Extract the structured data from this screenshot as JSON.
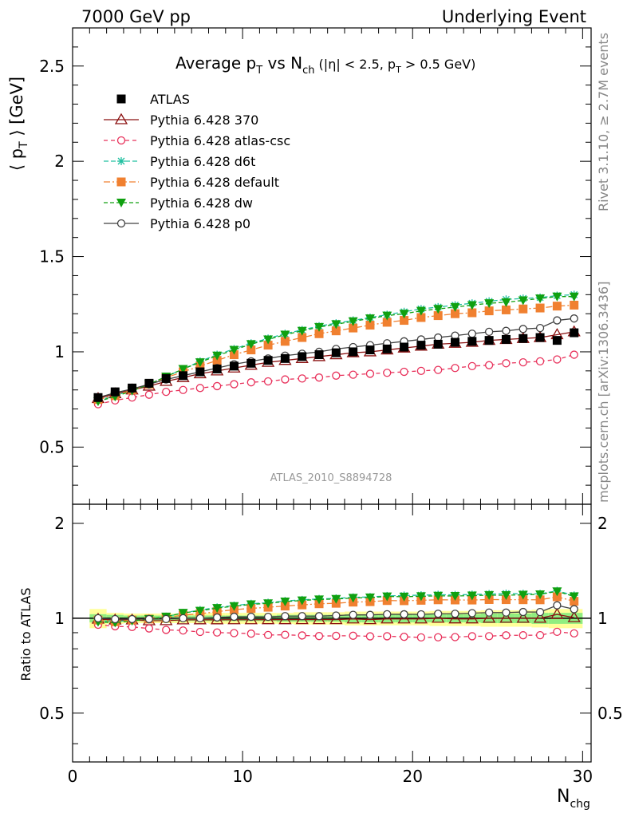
{
  "header": {
    "left": "7000 GeV pp",
    "right": "Underlying Event"
  },
  "side_text": {
    "rivet": "Rivet 3.1.10, ≥ 2.7M events",
    "mcplots": "mcplots.cern.ch [arXiv:1306.3436]"
  },
  "watermark": "ATLAS_2010_S8894728",
  "title": {
    "main": "Average p",
    "main_sub": "T",
    "vs": " vs N",
    "vs_sub": "ch",
    "cut1": " (|η| < 2.5, p",
    "cut_sub": "T",
    "cut2": " > 0.5 GeV)"
  },
  "ylabel_main": "⟨ p",
  "ylabel_main_sub": "T",
  "ylabel_main_end": " ⟩ [GeV]",
  "ylabel_ratio": "Ratio to ATLAS",
  "xlabel": "N",
  "xlabel_sub": "chg",
  "colors": {
    "ATLAS": "#000000",
    "p370": "#8b1010",
    "atlascsc": "#e8305a",
    "d6t": "#20c0a0",
    "default": "#f08030",
    "dw": "#10a010",
    "p0": "#404040",
    "band_inner": "#90ee80",
    "band_outer": "#ffff99"
  },
  "legend": [
    {
      "name": "ATLAS",
      "key": "ATLAS"
    },
    {
      "name": "Pythia 6.428 370",
      "key": "p370"
    },
    {
      "name": "Pythia 6.428 atlas-csc",
      "key": "atlascsc"
    },
    {
      "name": "Pythia 6.428 d6t",
      "key": "d6t"
    },
    {
      "name": "Pythia 6.428 default",
      "key": "default"
    },
    {
      "name": "Pythia 6.428 dw",
      "key": "dw"
    },
    {
      "name": "Pythia 6.428 p0",
      "key": "p0"
    }
  ],
  "chart_data": {
    "type": "scatter",
    "title": "Average pT vs Nch (|η| < 2.5, pT > 0.5 GeV)",
    "xlabel": "Nchg",
    "ylabel": "⟨ pT ⟩ [GeV]",
    "xlim": [
      0,
      30.5
    ],
    "ylim_main": [
      0.2,
      2.7
    ],
    "ylim_ratio": [
      0.35,
      2.3
    ],
    "x_ticks": [
      0,
      10,
      20,
      30
    ],
    "y_ticks_main": [
      0.5,
      1,
      1.5,
      2,
      2.5
    ],
    "y_ticks_ratio": [
      0.5,
      1,
      2
    ],
    "x": [
      1.5,
      2.5,
      3.5,
      4.5,
      5.5,
      6.5,
      7.5,
      8.5,
      9.5,
      10.5,
      11.5,
      12.5,
      13.5,
      14.5,
      15.5,
      16.5,
      17.5,
      18.5,
      19.5,
      20.5,
      21.5,
      22.5,
      23.5,
      24.5,
      25.5,
      26.5,
      27.5,
      28.5,
      29.5
    ],
    "series": [
      {
        "name": "ATLAS",
        "key": "ATLAS",
        "marker": "square",
        "values": [
          0.76,
          0.79,
          0.81,
          0.835,
          0.86,
          0.875,
          0.895,
          0.91,
          0.925,
          0.94,
          0.955,
          0.965,
          0.975,
          0.985,
          0.995,
          1.0,
          1.01,
          1.015,
          1.025,
          1.035,
          1.04,
          1.05,
          1.055,
          1.06,
          1.065,
          1.07,
          1.075,
          1.06,
          1.1
        ]
      },
      {
        "name": "Pythia 6.428 370",
        "key": "p370",
        "marker": "triangle-open",
        "dash": "",
        "values": [
          0.755,
          0.78,
          0.8,
          0.82,
          0.845,
          0.865,
          0.885,
          0.9,
          0.915,
          0.93,
          0.945,
          0.955,
          0.965,
          0.975,
          0.985,
          0.995,
          1.0,
          1.01,
          1.02,
          1.03,
          1.04,
          1.045,
          1.05,
          1.06,
          1.065,
          1.07,
          1.075,
          1.09,
          1.105
        ]
      },
      {
        "name": "Pythia 6.428 atlas-csc",
        "key": "atlascsc",
        "marker": "circle-open",
        "dash": "5,4",
        "values": [
          0.725,
          0.745,
          0.76,
          0.775,
          0.79,
          0.8,
          0.81,
          0.82,
          0.83,
          0.84,
          0.845,
          0.855,
          0.86,
          0.865,
          0.875,
          0.88,
          0.885,
          0.89,
          0.895,
          0.9,
          0.905,
          0.915,
          0.925,
          0.93,
          0.94,
          0.945,
          0.95,
          0.96,
          0.985
        ]
      },
      {
        "name": "Pythia 6.428 d6t",
        "key": "d6t",
        "marker": "star",
        "dash": "6,3",
        "values": [
          0.745,
          0.77,
          0.8,
          0.83,
          0.87,
          0.91,
          0.95,
          0.985,
          1.015,
          1.045,
          1.07,
          1.095,
          1.115,
          1.135,
          1.15,
          1.165,
          1.18,
          1.195,
          1.21,
          1.225,
          1.235,
          1.245,
          1.255,
          1.265,
          1.275,
          1.28,
          1.285,
          1.295,
          1.3
        ]
      },
      {
        "name": "Pythia 6.428 default",
        "key": "default",
        "marker": "square",
        "dash": "8,3,2,3",
        "values": [
          0.75,
          0.77,
          0.8,
          0.83,
          0.865,
          0.895,
          0.925,
          0.955,
          0.985,
          1.01,
          1.035,
          1.055,
          1.075,
          1.095,
          1.11,
          1.125,
          1.14,
          1.155,
          1.165,
          1.18,
          1.19,
          1.2,
          1.205,
          1.215,
          1.22,
          1.225,
          1.23,
          1.24,
          1.245
        ]
      },
      {
        "name": "Pythia 6.428 dw",
        "key": "dw",
        "marker": "triangle-down",
        "dash": "5,3",
        "values": [
          0.74,
          0.765,
          0.795,
          0.83,
          0.87,
          0.91,
          0.945,
          0.98,
          1.01,
          1.04,
          1.065,
          1.09,
          1.11,
          1.13,
          1.145,
          1.16,
          1.175,
          1.19,
          1.2,
          1.215,
          1.225,
          1.235,
          1.245,
          1.255,
          1.26,
          1.27,
          1.28,
          1.29,
          1.29
        ]
      },
      {
        "name": "Pythia 6.428 p0",
        "key": "p0",
        "marker": "circle-open",
        "dash": "",
        "values": [
          0.76,
          0.785,
          0.805,
          0.83,
          0.855,
          0.875,
          0.895,
          0.915,
          0.935,
          0.95,
          0.965,
          0.98,
          0.99,
          1.0,
          1.015,
          1.025,
          1.035,
          1.045,
          1.055,
          1.065,
          1.075,
          1.085,
          1.095,
          1.105,
          1.11,
          1.12,
          1.125,
          1.165,
          1.175
        ]
      }
    ],
    "ratio_band": {
      "inner_halfwidth": [
        0.03,
        0.025,
        0.02,
        0.02,
        0.02,
        0.02,
        0.02,
        0.02,
        0.02,
        0.02,
        0.02,
        0.025,
        0.025,
        0.025,
        0.025,
        0.03,
        0.03,
        0.03,
        0.03,
        0.03,
        0.03,
        0.03,
        0.03,
        0.035,
        0.035,
        0.035,
        0.04,
        0.04,
        0.04
      ],
      "outer_halfwidth": [
        0.07,
        0.04,
        0.035,
        0.035,
        0.035,
        0.035,
        0.035,
        0.04,
        0.04,
        0.04,
        0.04,
        0.04,
        0.045,
        0.045,
        0.045,
        0.05,
        0.05,
        0.05,
        0.05,
        0.05,
        0.055,
        0.055,
        0.055,
        0.06,
        0.06,
        0.06,
        0.065,
        0.07,
        0.07
      ]
    }
  }
}
